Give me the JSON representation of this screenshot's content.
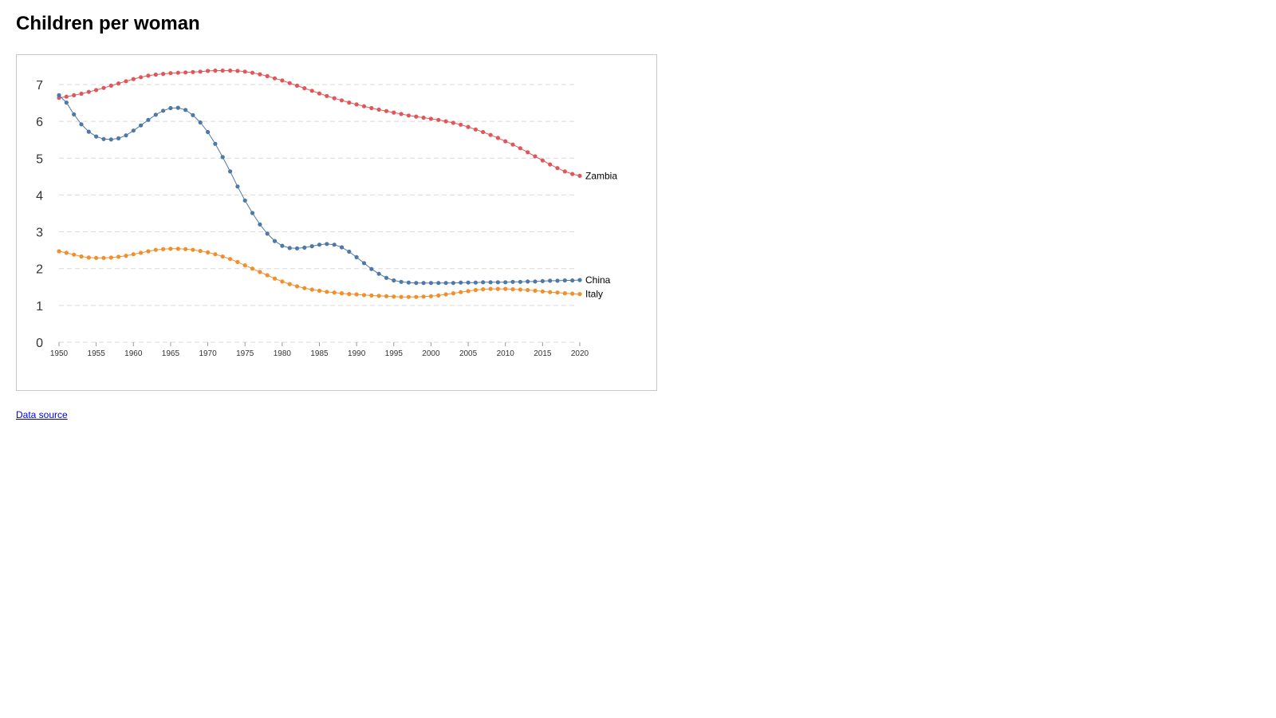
{
  "page": {
    "title": "Children per woman",
    "source_link": "Data source"
  },
  "chart_data": {
    "type": "line",
    "title": "",
    "xlabel": "",
    "ylabel": "",
    "xlim": [
      1950,
      2020
    ],
    "ylim": [
      0,
      7
    ],
    "x_ticks": [
      1950,
      1955,
      1960,
      1965,
      1970,
      1975,
      1980,
      1985,
      1990,
      1995,
      2000,
      2005,
      2010,
      2015,
      2020
    ],
    "y_ticks": [
      0,
      1,
      2,
      3,
      4,
      5,
      6,
      7
    ],
    "grid": "horizontal-dashed",
    "legend": "end-of-line labels",
    "x": [
      1950,
      1951,
      1952,
      1953,
      1954,
      1955,
      1956,
      1957,
      1958,
      1959,
      1960,
      1961,
      1962,
      1963,
      1964,
      1965,
      1966,
      1967,
      1968,
      1969,
      1970,
      1971,
      1972,
      1973,
      1974,
      1975,
      1976,
      1977,
      1978,
      1979,
      1980,
      1981,
      1982,
      1983,
      1984,
      1985,
      1986,
      1987,
      1988,
      1989,
      1990,
      1991,
      1992,
      1993,
      1994,
      1995,
      1996,
      1997,
      1998,
      1999,
      2000,
      2001,
      2002,
      2003,
      2004,
      2005,
      2006,
      2007,
      2008,
      2009,
      2010,
      2011,
      2012,
      2013,
      2014,
      2015,
      2016,
      2017,
      2018,
      2019,
      2020
    ],
    "series": [
      {
        "name": "Zambia",
        "color": "#e15759",
        "values": [
          6.64,
          6.67,
          6.71,
          6.75,
          6.8,
          6.85,
          6.91,
          6.97,
          7.03,
          7.09,
          7.15,
          7.2,
          7.24,
          7.27,
          7.29,
          7.31,
          7.32,
          7.33,
          7.34,
          7.35,
          7.37,
          7.38,
          7.38,
          7.38,
          7.37,
          7.35,
          7.32,
          7.28,
          7.23,
          7.17,
          7.11,
          7.04,
          6.97,
          6.9,
          6.83,
          6.76,
          6.69,
          6.63,
          6.57,
          6.51,
          6.46,
          6.41,
          6.36,
          6.32,
          6.28,
          6.24,
          6.2,
          6.16,
          6.13,
          6.1,
          6.07,
          6.04,
          6.0,
          5.96,
          5.91,
          5.85,
          5.78,
          5.71,
          5.63,
          5.55,
          5.46,
          5.37,
          5.27,
          5.16,
          5.05,
          4.94,
          4.83,
          4.73,
          4.64,
          4.57,
          4.52
        ]
      },
      {
        "name": "China",
        "color": "#4e79a7",
        "values": [
          6.71,
          6.51,
          6.19,
          5.92,
          5.72,
          5.59,
          5.52,
          5.51,
          5.54,
          5.62,
          5.75,
          5.89,
          6.04,
          6.18,
          6.29,
          6.36,
          6.37,
          6.31,
          6.17,
          5.97,
          5.71,
          5.39,
          5.03,
          4.64,
          4.23,
          3.85,
          3.51,
          3.2,
          2.95,
          2.75,
          2.62,
          2.56,
          2.55,
          2.57,
          2.61,
          2.65,
          2.67,
          2.65,
          2.58,
          2.46,
          2.31,
          2.15,
          1.99,
          1.86,
          1.75,
          1.68,
          1.64,
          1.62,
          1.61,
          1.61,
          1.61,
          1.61,
          1.61,
          1.61,
          1.62,
          1.62,
          1.62,
          1.63,
          1.63,
          1.63,
          1.63,
          1.64,
          1.64,
          1.65,
          1.65,
          1.66,
          1.67,
          1.67,
          1.68,
          1.68,
          1.69
        ]
      },
      {
        "name": "Italy",
        "color": "#f28e2b",
        "values": [
          2.47,
          2.43,
          2.38,
          2.33,
          2.3,
          2.29,
          2.29,
          2.3,
          2.32,
          2.35,
          2.39,
          2.43,
          2.47,
          2.51,
          2.53,
          2.54,
          2.54,
          2.53,
          2.51,
          2.48,
          2.44,
          2.39,
          2.33,
          2.26,
          2.18,
          2.09,
          2.0,
          1.91,
          1.82,
          1.73,
          1.65,
          1.58,
          1.52,
          1.47,
          1.43,
          1.4,
          1.37,
          1.35,
          1.33,
          1.31,
          1.3,
          1.28,
          1.27,
          1.26,
          1.25,
          1.24,
          1.23,
          1.23,
          1.23,
          1.24,
          1.25,
          1.27,
          1.3,
          1.33,
          1.36,
          1.39,
          1.42,
          1.44,
          1.45,
          1.45,
          1.45,
          1.44,
          1.43,
          1.42,
          1.4,
          1.38,
          1.36,
          1.35,
          1.33,
          1.32,
          1.31
        ]
      }
    ]
  }
}
